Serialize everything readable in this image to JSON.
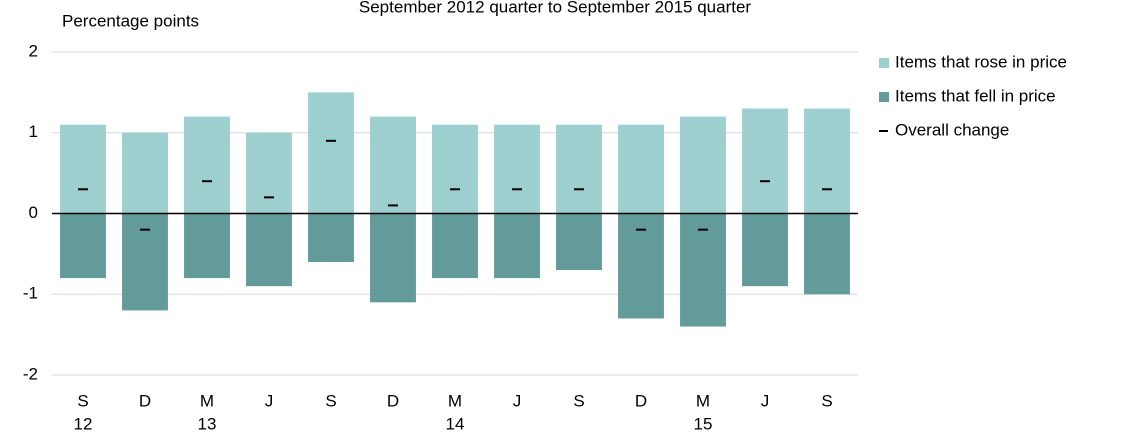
{
  "chart_data": {
    "type": "bar",
    "title": "September 2012 quarter to September 2015 quarter",
    "y_label": "Percentage points",
    "categories": [
      "S",
      "D",
      "M",
      "J",
      "S",
      "D",
      "M",
      "J",
      "S",
      "D",
      "M",
      "J",
      "S"
    ],
    "year_labels": [
      "12",
      null,
      "13",
      null,
      null,
      null,
      "14",
      null,
      null,
      null,
      "15",
      null,
      null
    ],
    "series": [
      {
        "name": "Items that rose in price",
        "color": "#9ecfcf",
        "style": "bar",
        "values": [
          1.1,
          1.0,
          1.2,
          1.0,
          1.5,
          1.2,
          1.1,
          1.1,
          1.1,
          1.1,
          1.2,
          1.3,
          1.3
        ]
      },
      {
        "name": "Items that fell in price",
        "color": "#639a9a",
        "style": "bar",
        "values": [
          -0.8,
          -1.2,
          -0.8,
          -0.9,
          -0.6,
          -1.1,
          -0.8,
          -0.8,
          -0.7,
          -1.3,
          -1.4,
          -0.9,
          -1.0
        ]
      },
      {
        "name": "Overall change",
        "color": "#000000",
        "style": "dash",
        "values": [
          0.3,
          -0.2,
          0.4,
          0.2,
          0.9,
          0.1,
          0.3,
          0.3,
          0.3,
          -0.2,
          -0.2,
          0.4,
          0.3
        ]
      }
    ],
    "ylim": [
      -2,
      2
    ],
    "yticks": [
      -2,
      -1,
      0,
      1,
      2
    ],
    "grid": true,
    "legend": "right"
  }
}
